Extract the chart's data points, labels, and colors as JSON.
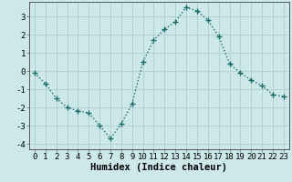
{
  "x": [
    0,
    1,
    2,
    3,
    4,
    5,
    6,
    7,
    8,
    9,
    10,
    11,
    12,
    13,
    14,
    15,
    16,
    17,
    18,
    19,
    20,
    21,
    22,
    23
  ],
  "y": [
    -0.1,
    -0.7,
    -1.5,
    -2.0,
    -2.2,
    -2.3,
    -3.0,
    -3.7,
    -2.9,
    -1.8,
    0.5,
    1.7,
    2.3,
    2.7,
    3.5,
    3.3,
    2.8,
    1.9,
    0.4,
    -0.1,
    -0.5,
    -0.8,
    -1.3,
    -1.4
  ],
  "line_color": "#1a6b6b",
  "marker": "+",
  "marker_size": 5,
  "bg_color": "#cce8e8",
  "grid_color": "#b0cccc",
  "xlabel": "Humidex (Indice chaleur)",
  "xlim": [
    -0.5,
    23.5
  ],
  "ylim": [
    -4.3,
    3.8
  ],
  "xticks": [
    0,
    1,
    2,
    3,
    4,
    5,
    6,
    7,
    8,
    9,
    10,
    11,
    12,
    13,
    14,
    15,
    16,
    17,
    18,
    19,
    20,
    21,
    22,
    23
  ],
  "yticks": [
    -4,
    -3,
    -2,
    -1,
    0,
    1,
    2,
    3
  ],
  "xlabel_fontsize": 7.5,
  "tick_fontsize": 6.5,
  "line_width": 1.0
}
